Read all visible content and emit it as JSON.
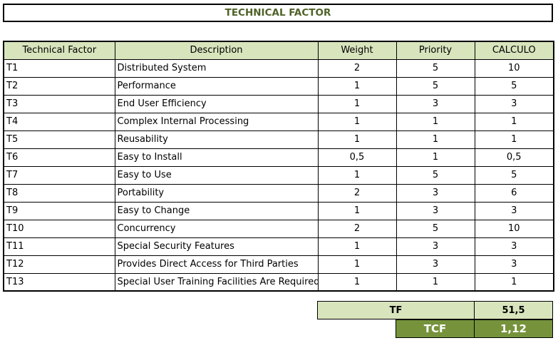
{
  "title": "TECHNICAL FACTOR",
  "headers": [
    "Technical Factor",
    "Description",
    "Weight",
    "Priority",
    "CALCULO"
  ],
  "rows": [
    {
      "factor": "T1",
      "description": "Distributed System",
      "weight": "2",
      "priority": "5",
      "calculo": "10"
    },
    {
      "factor": "T2",
      "description": "Performance",
      "weight": "1",
      "priority": "5",
      "calculo": "5"
    },
    {
      "factor": "T3",
      "description": "End User Efficiency",
      "weight": "1",
      "priority": "3",
      "calculo": "3"
    },
    {
      "factor": "T4",
      "description": "Complex Internal Processing",
      "weight": "1",
      "priority": "1",
      "calculo": "1"
    },
    {
      "factor": "T5",
      "description": "Reusability",
      "weight": "1",
      "priority": "1",
      "calculo": "1"
    },
    {
      "factor": "T6",
      "description": "Easy to Install",
      "weight": "0,5",
      "priority": "1",
      "calculo": "0,5"
    },
    {
      "factor": "T7",
      "description": "Easy to Use",
      "weight": "1",
      "priority": "5",
      "calculo": "5"
    },
    {
      "factor": "T8",
      "description": "Portability",
      "weight": "2",
      "priority": "3",
      "calculo": "6"
    },
    {
      "factor": "T9",
      "description": "Easy to Change",
      "weight": "1",
      "priority": "3",
      "calculo": "3"
    },
    {
      "factor": "T10",
      "description": "Concurrency",
      "weight": "2",
      "priority": "5",
      "calculo": "10"
    },
    {
      "factor": "T11",
      "description": "Special Security Features",
      "weight": "1",
      "priority": "3",
      "calculo": "3"
    },
    {
      "factor": "T12",
      "description": "Provides Direct Access for Third Parties",
      "weight": "1",
      "priority": "3",
      "calculo": "3"
    },
    {
      "factor": "T13",
      "description": "Special User Training Facilities Are Required",
      "weight": "1",
      "priority": "1",
      "calculo": "1"
    }
  ],
  "summary": {
    "tf_label": "TF",
    "tf_value": "51,5",
    "tcf_label": "TCF",
    "tcf_value": "1,12"
  },
  "colors": {
    "title_text": "#4f6228",
    "header_fill": "#d8e4bc",
    "tcf_fill": "#76933c"
  }
}
